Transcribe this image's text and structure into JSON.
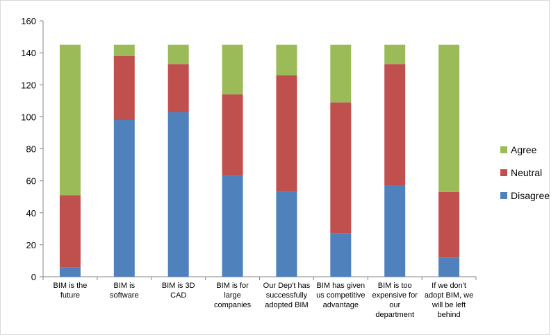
{
  "chart_data": {
    "type": "stacked-bar",
    "categories": [
      "BIM is the future",
      "BIM is software",
      "BIM is 3D CAD",
      "BIM is for large companies",
      "Our Dep't has successfully adopted BIM",
      "BIM has given us competitive advantage",
      "BIM is too expensive for our department",
      "If we don't adopt BIM, we will be left behind"
    ],
    "series": [
      {
        "name": "Disagree",
        "color": "#4f81bd",
        "values": [
          6,
          98,
          103,
          63,
          53,
          27,
          57,
          12
        ]
      },
      {
        "name": "Neutral",
        "color": "#c0504d",
        "values": [
          45,
          40,
          30,
          51,
          73,
          82,
          76,
          41
        ]
      },
      {
        "name": "Agree",
        "color": "#9bbb59",
        "values": [
          94,
          7,
          12,
          31,
          19,
          36,
          12,
          92
        ]
      }
    ],
    "ylim": [
      0,
      160
    ],
    "yticks": [
      0,
      20,
      40,
      60,
      80,
      100,
      120,
      140,
      160
    ],
    "grid": false,
    "legend": "right"
  }
}
